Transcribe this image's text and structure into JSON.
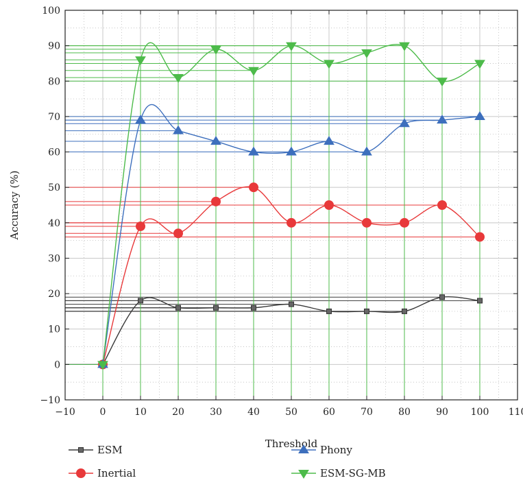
{
  "chart_data": {
    "type": "line",
    "title": "",
    "xlabel": "Threshold",
    "ylabel": "Accuracy (%)",
    "xlim": [
      -10,
      110
    ],
    "ylim": [
      -10,
      100
    ],
    "x_ticks": [
      -10,
      0,
      10,
      20,
      30,
      40,
      50,
      60,
      70,
      80,
      90,
      100,
      110
    ],
    "y_ticks": [
      -10,
      0,
      10,
      20,
      30,
      40,
      50,
      60,
      70,
      80,
      90,
      100
    ],
    "x_tick_labels": [
      "−10",
      "0",
      "10",
      "20",
      "30",
      "40",
      "50",
      "60",
      "70",
      "80",
      "90",
      "100",
      "110"
    ],
    "y_tick_labels": [
      "−10",
      "0",
      "10",
      "20",
      "30",
      "40",
      "50",
      "60",
      "70",
      "80",
      "90",
      "100"
    ],
    "grid": true,
    "smoothed": true,
    "drop_lines": true,
    "legend_position": "bottom",
    "x": [
      0,
      10,
      20,
      30,
      40,
      50,
      60,
      70,
      80,
      90,
      100
    ],
    "series": [
      {
        "name": "ESM",
        "marker": "square",
        "color": "#3a3a3a",
        "values": [
          0,
          18,
          16,
          16,
          16,
          17,
          15,
          15,
          15,
          19,
          18
        ]
      },
      {
        "name": "Inertial",
        "marker": "circle",
        "color": "#e8393a",
        "values": [
          0,
          39,
          37,
          46,
          50,
          40,
          45,
          40,
          40,
          45,
          36
        ]
      },
      {
        "name": "Phony",
        "marker": "triangle-up",
        "color": "#3d6fbd",
        "values": [
          0,
          69,
          66,
          63,
          60,
          60,
          63,
          60,
          68,
          69,
          70
        ]
      },
      {
        "name": "ESM-SG-MB",
        "marker": "triangle-down",
        "color": "#4dbb4a",
        "values": [
          0,
          86,
          81,
          89,
          83,
          90,
          85,
          88,
          90,
          80,
          85
        ]
      }
    ]
  }
}
